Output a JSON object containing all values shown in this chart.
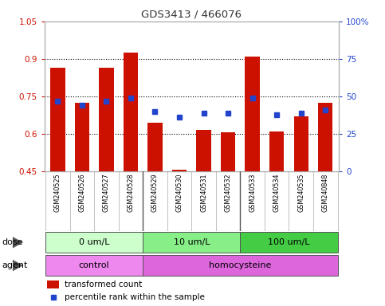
{
  "title": "GDS3413 / 466076",
  "samples": [
    "GSM240525",
    "GSM240526",
    "GSM240527",
    "GSM240528",
    "GSM240529",
    "GSM240530",
    "GSM240531",
    "GSM240532",
    "GSM240533",
    "GSM240534",
    "GSM240535",
    "GSM240848"
  ],
  "red_bars": [
    0.865,
    0.725,
    0.865,
    0.925,
    0.645,
    0.455,
    0.615,
    0.605,
    0.91,
    0.61,
    0.67,
    0.725
  ],
  "blue_squares_pct": [
    47,
    44,
    47,
    49,
    40,
    36,
    39,
    39,
    49,
    38,
    39,
    41
  ],
  "ylim_left": [
    0.45,
    1.05
  ],
  "ylim_right": [
    0,
    100
  ],
  "yticks_left": [
    0.45,
    0.6,
    0.75,
    0.9,
    1.05
  ],
  "yticks_right": [
    0,
    25,
    50,
    75,
    100
  ],
  "ytick_labels_left": [
    "0.45",
    "0.6",
    "0.75",
    "0.9",
    "1.05"
  ],
  "ytick_labels_right": [
    "0",
    "25",
    "50",
    "75",
    "100%"
  ],
  "bar_color": "#cc1100",
  "square_color": "#2244cc",
  "dose_groups": [
    {
      "label": "0 um/L",
      "start": 0,
      "end": 4,
      "color": "#ccffcc"
    },
    {
      "label": "10 um/L",
      "start": 4,
      "end": 8,
      "color": "#88ee88"
    },
    {
      "label": "100 um/L",
      "start": 8,
      "end": 12,
      "color": "#44cc44"
    }
  ],
  "agent_groups": [
    {
      "label": "control",
      "start": 0,
      "end": 4,
      "color": "#ee99ee"
    },
    {
      "label": "homocysteine",
      "start": 4,
      "end": 12,
      "color": "#dd66dd"
    }
  ],
  "dose_label": "dose",
  "agent_label": "agent",
  "legend_red": "transformed count",
  "legend_blue": "percentile rank within the sample",
  "bar_bottom": 0.45,
  "left_tick_color": "#cc1100",
  "right_tick_color": "#2244cc",
  "grid_lines": [
    0.6,
    0.75,
    0.9
  ],
  "group_dividers": [
    3.5,
    7.5
  ],
  "sample_label_bg": "#cccccc",
  "dose_colors": [
    "#ccffcc",
    "#88ee88",
    "#44cc44"
  ],
  "agent_colors": [
    "#ee88ee",
    "#dd66dd"
  ]
}
